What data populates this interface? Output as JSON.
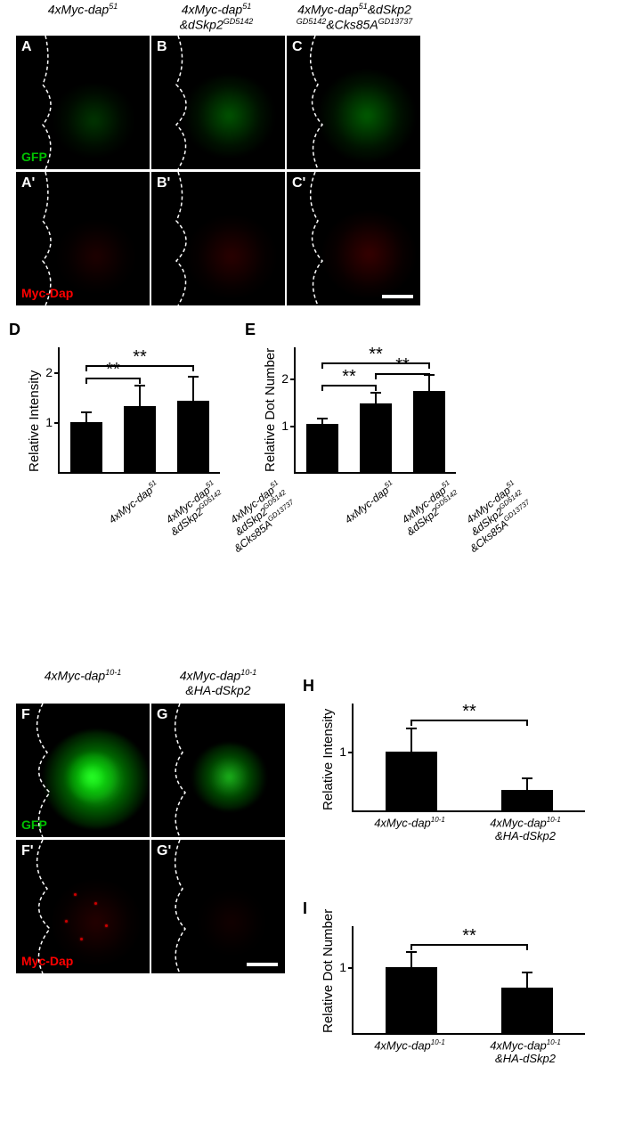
{
  "colors": {
    "gfp": "#00c000",
    "myc": "#ff0000",
    "bar_fill": "#000000",
    "axis": "#000000",
    "bg": "#ffffff"
  },
  "top_row_labels": {
    "A_title": "4xMyc-dap<sup>51</sup>",
    "B_title": "4xMyc-dap<sup>51</sup><br>&amp;dSkp2<sup>GD5142</sup>",
    "C_title": "4xMyc-dap<sup>51</sup>&amp;dSkp2<br><sup>GD5142</sup>&amp;Cks85A<sup>GD13737</sup>"
  },
  "panel_letters": {
    "A": "A",
    "B": "B",
    "C": "C",
    "Ap": "A'",
    "Bp": "B'",
    "Cp": "C'",
    "D": "D",
    "E": "E",
    "F": "F",
    "G": "G",
    "Fp": "F'",
    "Gp": "G'",
    "H": "H",
    "I": "I"
  },
  "channel_labels": {
    "gfp": "GFP",
    "myc": "Myc-Dap"
  },
  "bottom_row_labels": {
    "F_title": "4xMyc-dap<sup>10-1</sup>",
    "G_title": "4xMyc-dap<sup>10-1</sup><br>&amp;HA-dSkp2"
  },
  "chart_D": {
    "ylabel": "Relative Intensity",
    "ymax": 2,
    "yticks": [
      1,
      2
    ],
    "bar_width_ratio": 0.6,
    "bars": [
      {
        "label": "4xMyc-dap<sup>51</sup>",
        "value": 1.0,
        "err": 0.19
      },
      {
        "label": "4xMyc-dap<sup>51</sup><br>&amp;dSkp2<sup>GD5142</sup>",
        "value": 1.33,
        "err": 0.4
      },
      {
        "label": "4xMyc-dap<sup>51</sup><br>&amp;dSkp2<sup>GD5142</sup><br>&amp;Cks85A<sup>GD13737</sup>",
        "value": 1.43,
        "err": 0.48
      }
    ],
    "sig": [
      {
        "from": 0,
        "to": 1,
        "y": 1.9,
        "text": "**"
      },
      {
        "from": 0,
        "to": 2,
        "y": 2.15,
        "text": "**"
      }
    ]
  },
  "chart_E": {
    "ylabel": "Relative Dot Number",
    "ymax": 2,
    "yticks": [
      1,
      2
    ],
    "bar_width_ratio": 0.6,
    "bars": [
      {
        "label": "4xMyc-dap<sup>51</sup>",
        "value": 1.02,
        "err": 0.13
      },
      {
        "label": "4xMyc-dap<sup>51</sup><br>&amp;dSkp2<sup>GD5142</sup>",
        "value": 1.47,
        "err": 0.23
      },
      {
        "label": "4xMyc-dap<sup>51</sup><br>&amp;dSkp2<sup>GD5142</sup><br>&amp;Cks85A<sup>GD13737</sup>",
        "value": 1.74,
        "err": 0.33
      }
    ],
    "sig": [
      {
        "from": 0,
        "to": 1,
        "y": 1.87,
        "text": "**"
      },
      {
        "from": 1,
        "to": 2,
        "y": 2.12,
        "text": "**"
      },
      {
        "from": 0,
        "to": 2,
        "y": 2.35,
        "text": "**"
      }
    ]
  },
  "chart_H": {
    "ylabel": "Relative Intensity",
    "ymax": 1,
    "yticks": [
      1
    ],
    "bar_width_ratio": 0.45,
    "bars": [
      {
        "label": "4xMyc-dap<sup>10-1</sup>",
        "value": 1.0,
        "err": 0.4
      },
      {
        "label": "4xMyc-dap<sup>10-1</sup><br>&amp;HA-dSkp2",
        "value": 0.35,
        "err": 0.19
      }
    ],
    "sig": [
      {
        "from": 0,
        "to": 1,
        "y": 1.55,
        "text": "**"
      }
    ]
  },
  "chart_I": {
    "ylabel": "Relative Dot Number",
    "ymax": 1,
    "yticks": [
      1
    ],
    "bar_width_ratio": 0.45,
    "bars": [
      {
        "label": "4xMyc-dap<sup>10-1</sup>",
        "value": 1.0,
        "err": 0.23
      },
      {
        "label": "4xMyc-dap<sup>10-1</sup><br>&amp;HA-dSkp2",
        "value": 0.68,
        "err": 0.24
      }
    ],
    "sig": [
      {
        "from": 0,
        "to": 1,
        "y": 1.35,
        "text": "**"
      }
    ]
  }
}
